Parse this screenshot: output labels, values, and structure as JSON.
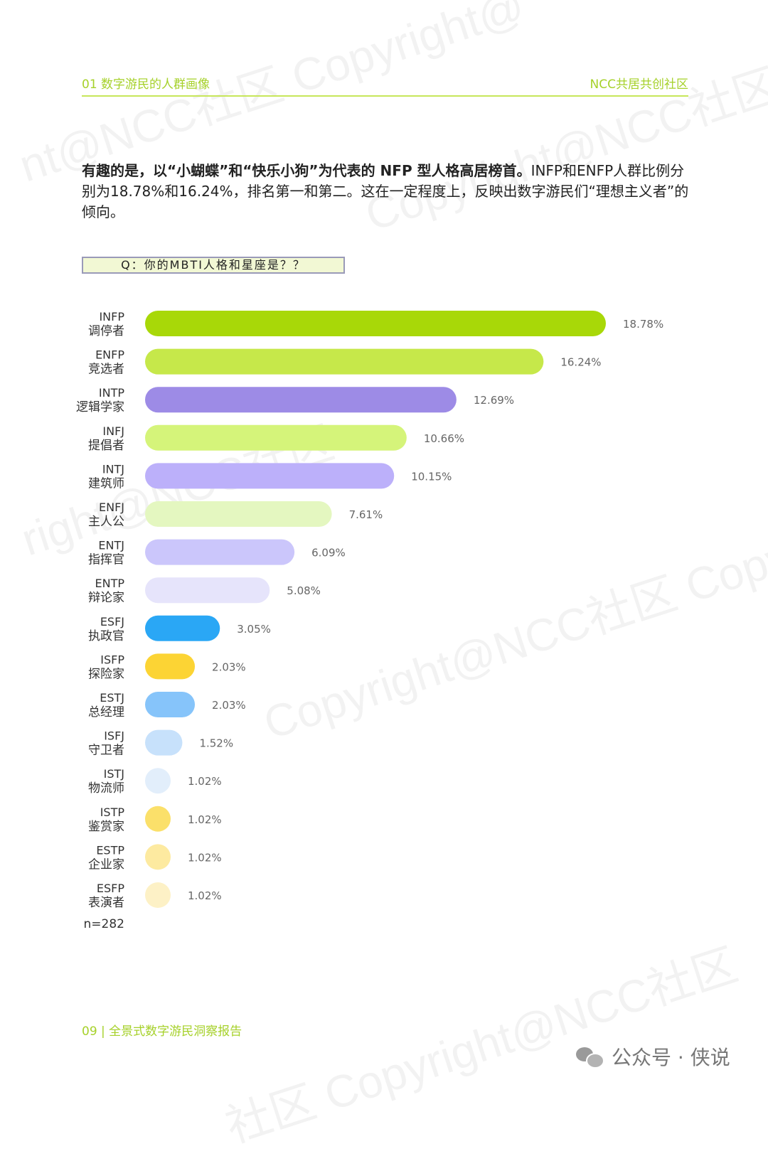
{
  "header": {
    "section": "01 数字游民的人群画像",
    "brand": "NCC共居共创社区"
  },
  "intro": {
    "bold": "有趣的是，以“小蝴蝶”和“快乐小狗”为代表的 NFP 型人格高居榜首。",
    "text": "INFP和ENFP人群比例分别为18.78%和16.24%，排名第一和第二。这在一定程度上，反映出数字游民们“理想主义者”的倾向。"
  },
  "question": "Q：你的MBTI人格和星座是？？",
  "chart_data": {
    "type": "bar",
    "orientation": "horizontal",
    "note": "n=282",
    "categories": [
      {
        "code": "INFP",
        "name": "调停者"
      },
      {
        "code": "ENFP",
        "name": "竞选者"
      },
      {
        "code": "INTP",
        "name": "逻辑学家"
      },
      {
        "code": "INFJ",
        "name": "提倡者"
      },
      {
        "code": "INTJ",
        "name": "建筑师"
      },
      {
        "code": "ENFJ",
        "name": "主人公"
      },
      {
        "code": "ENTJ",
        "name": "指挥官"
      },
      {
        "code": "ENTP",
        "name": "辩论家"
      },
      {
        "code": "ESFJ",
        "name": "执政官"
      },
      {
        "code": "ISFP",
        "name": "探险家"
      },
      {
        "code": "ESTJ",
        "name": "总经理"
      },
      {
        "code": "ISFJ",
        "name": "守卫者"
      },
      {
        "code": "ISTJ",
        "name": "物流师"
      },
      {
        "code": "ISTP",
        "name": "鉴赏家"
      },
      {
        "code": "ESTP",
        "name": "企业家"
      },
      {
        "code": "ESFP",
        "name": "表演者"
      }
    ],
    "values": [
      18.78,
      16.24,
      12.69,
      10.66,
      10.15,
      7.61,
      6.09,
      5.08,
      3.05,
      2.03,
      2.03,
      1.52,
      1.02,
      1.02,
      1.02,
      1.02
    ],
    "labels": [
      "18.78%",
      "16.24%",
      "12.69%",
      "10.66%",
      "10.15%",
      "7.61%",
      "6.09%",
      "5.08%",
      "3.05%",
      "2.03%",
      "2.03%",
      "1.52%",
      "1.02%",
      "1.02%",
      "1.02%",
      "1.02%"
    ],
    "colors": [
      "#a8d808",
      "#c6e84a",
      "#9d8be6",
      "#d5f47a",
      "#bcb0fa",
      "#e4f7c0",
      "#cbc6fb",
      "#e6e4fb",
      "#2aa7f5",
      "#fcd434",
      "#86c4fa",
      "#c7e1fb",
      "#e2eefb",
      "#fbe06a",
      "#fdeaa0",
      "#fdf1c6"
    ]
  },
  "footer": {
    "left": "09 | 全景式数字游民洞察报告",
    "right": "公众号 · 侠说"
  }
}
